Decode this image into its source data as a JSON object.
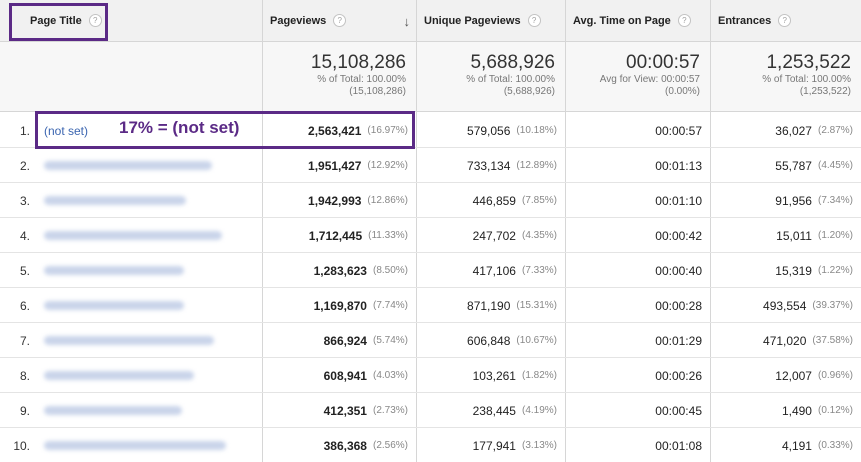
{
  "columns": [
    {
      "label": "Page Title"
    },
    {
      "label": "Pageviews"
    },
    {
      "label": "Unique Pageviews"
    },
    {
      "label": "Avg. Time on Page"
    },
    {
      "label": "Entrances"
    }
  ],
  "help_glyph": "?",
  "sort_glyph": "↓",
  "totals": {
    "pageviews": {
      "value": "15,108,286",
      "line1": "% of Total: 100.00%",
      "line2": "(15,108,286)"
    },
    "unique": {
      "value": "5,688,926",
      "line1": "% of Total: 100.00%",
      "line2": "(5,688,926)"
    },
    "avg_time": {
      "value": "00:00:57",
      "line1": "Avg for View: 00:00:57",
      "line2": "(0.00%)"
    },
    "entrances": {
      "value": "1,253,522",
      "line1": "% of Total: 100.00%",
      "line2": "(1,253,522)"
    }
  },
  "rows": [
    {
      "idx": "1.",
      "title": "(not set)",
      "pv": "2,563,421",
      "pv_pct": "(16.97%)",
      "upv": "579,056",
      "upv_pct": "(10.18%)",
      "time": "00:00:57",
      "ent": "36,027",
      "ent_pct": "(2.87%)"
    },
    {
      "idx": "2.",
      "title": "",
      "pv": "1,951,427",
      "pv_pct": "(12.92%)",
      "upv": "733,134",
      "upv_pct": "(12.89%)",
      "time": "00:01:13",
      "ent": "55,787",
      "ent_pct": "(4.45%)"
    },
    {
      "idx": "3.",
      "title": "",
      "pv": "1,942,993",
      "pv_pct": "(12.86%)",
      "upv": "446,859",
      "upv_pct": "(7.85%)",
      "time": "00:01:10",
      "ent": "91,956",
      "ent_pct": "(7.34%)"
    },
    {
      "idx": "4.",
      "title": "",
      "pv": "1,712,445",
      "pv_pct": "(11.33%)",
      "upv": "247,702",
      "upv_pct": "(4.35%)",
      "time": "00:00:42",
      "ent": "15,011",
      "ent_pct": "(1.20%)"
    },
    {
      "idx": "5.",
      "title": "",
      "pv": "1,283,623",
      "pv_pct": "(8.50%)",
      "upv": "417,106",
      "upv_pct": "(7.33%)",
      "time": "00:00:40",
      "ent": "15,319",
      "ent_pct": "(1.22%)"
    },
    {
      "idx": "6.",
      "title": "",
      "pv": "1,169,870",
      "pv_pct": "(7.74%)",
      "upv": "871,190",
      "upv_pct": "(15.31%)",
      "time": "00:00:28",
      "ent": "493,554",
      "ent_pct": "(39.37%)"
    },
    {
      "idx": "7.",
      "title": "",
      "pv": "866,924",
      "pv_pct": "(5.74%)",
      "upv": "606,848",
      "upv_pct": "(10.67%)",
      "time": "00:01:29",
      "ent": "471,020",
      "ent_pct": "(37.58%)"
    },
    {
      "idx": "8.",
      "title": "",
      "pv": "608,941",
      "pv_pct": "(4.03%)",
      "upv": "103,261",
      "upv_pct": "(1.82%)",
      "time": "00:00:26",
      "ent": "12,007",
      "ent_pct": "(0.96%)"
    },
    {
      "idx": "9.",
      "title": "",
      "pv": "412,351",
      "pv_pct": "(2.73%)",
      "upv": "238,445",
      "upv_pct": "(4.19%)",
      "time": "00:00:45",
      "ent": "1,490",
      "ent_pct": "(0.12%)"
    },
    {
      "idx": "10.",
      "title": "",
      "pv": "386,368",
      "pv_pct": "(2.56%)",
      "upv": "177,941",
      "upv_pct": "(3.13%)",
      "time": "00:01:08",
      "ent": "4,191",
      "ent_pct": "(0.33%)"
    }
  ],
  "annotation": {
    "text": "17% = (not set)",
    "color": "#5b2a86"
  },
  "colors": {
    "link": "#3b65b0",
    "header_bg": "#f1f1f1",
    "totals_bg": "#f7f7f7"
  }
}
